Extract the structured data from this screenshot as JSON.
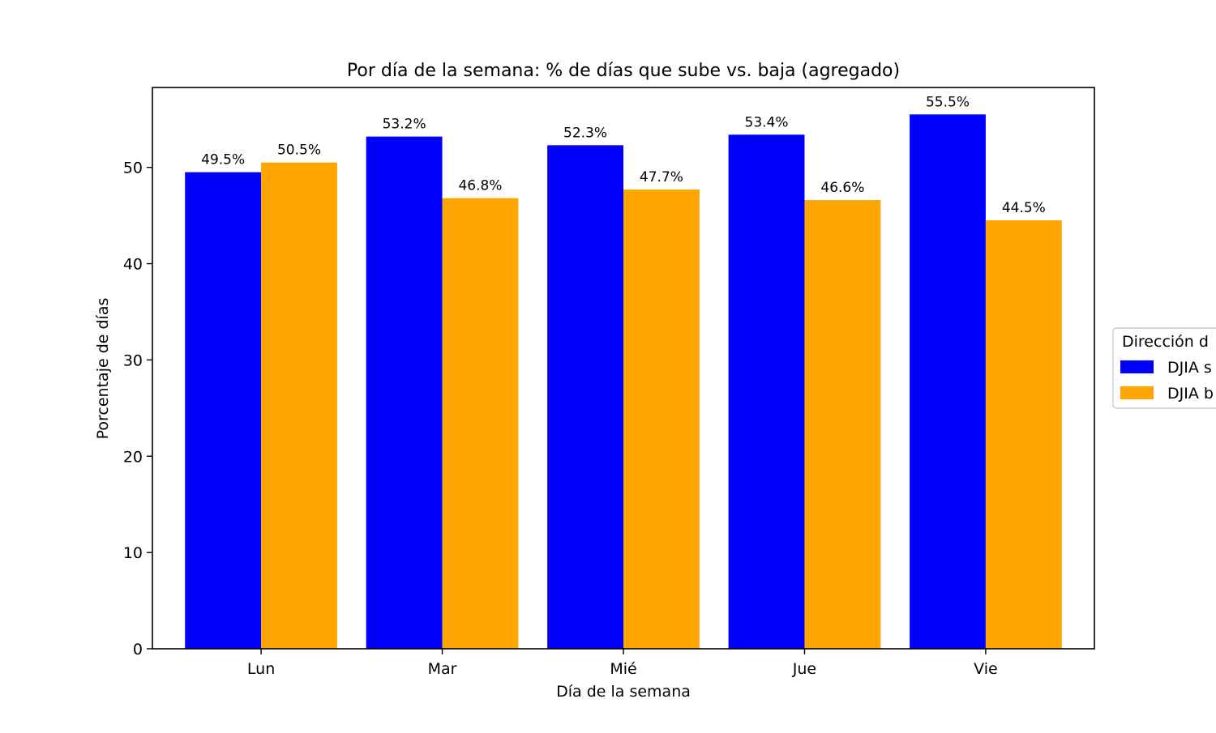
{
  "chart_data": {
    "type": "bar",
    "title": "Por día de la semana: % de días que sube vs. baja (agregado)",
    "xlabel": "Día de la semana",
    "ylabel": "Porcentaje de días",
    "categories": [
      "Lun",
      "Mar",
      "Mié",
      "Jue",
      "Vie"
    ],
    "ylim": [
      0,
      58.3
    ],
    "yticks": [
      0,
      10,
      20,
      30,
      40,
      50
    ],
    "grid": false,
    "legend_placement": "right (outside plot, clipped)",
    "legend": {
      "title": "Dirección d",
      "entries": [
        "DJIA s",
        "DJIA b"
      ]
    },
    "series": [
      {
        "color": "#0000ff",
        "values": [
          49.5,
          53.2,
          52.3,
          53.4,
          55.5
        ],
        "labels": [
          "49.5%",
          "53.2%",
          "52.3%",
          "53.4%",
          "55.5%"
        ]
      },
      {
        "color": "#ffa500",
        "values": [
          50.5,
          46.8,
          47.7,
          46.6,
          44.5
        ],
        "labels": [
          "50.5%",
          "46.8%",
          "47.7%",
          "46.6%",
          "44.5%"
        ]
      }
    ]
  }
}
